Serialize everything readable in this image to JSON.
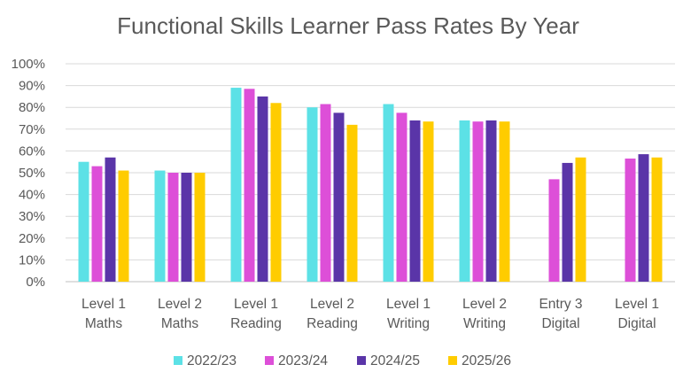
{
  "chart_data": {
    "type": "bar",
    "title": "Functional Skills Learner Pass Rates By Year",
    "categories": [
      [
        "Level 1",
        "Maths"
      ],
      [
        "Level 2",
        "Maths"
      ],
      [
        "Level 1",
        "Reading"
      ],
      [
        "Level 2",
        "Reading"
      ],
      [
        "Level 1",
        "Writing"
      ],
      [
        "Level 2",
        "Writing"
      ],
      [
        "Entry 3",
        "Digital"
      ],
      [
        "Level 1",
        "Digital"
      ]
    ],
    "series": [
      {
        "name": "2022/23",
        "color": "#5ce1e6",
        "values": [
          55,
          51,
          89,
          80,
          81.5,
          74,
          null,
          null
        ]
      },
      {
        "name": "2023/24",
        "color": "#dd4fd8",
        "values": [
          53,
          50,
          88.5,
          81.5,
          77.5,
          73.5,
          47,
          56.5
        ]
      },
      {
        "name": "2024/25",
        "color": "#5a35a8",
        "values": [
          57,
          50,
          85,
          77.5,
          74,
          74,
          54.5,
          58.5
        ]
      },
      {
        "name": "2025/26",
        "color": "#ffcc00",
        "values": [
          51,
          50,
          82,
          72,
          73.5,
          73.5,
          57,
          57
        ]
      }
    ],
    "ylim": [
      0,
      100
    ],
    "ytick_step": 10,
    "ytick_labels": [
      "0%",
      "10%",
      "20%",
      "30%",
      "40%",
      "50%",
      "60%",
      "70%",
      "80%",
      "90%",
      "100%"
    ],
    "grid": true,
    "legend": "bottom-center"
  }
}
